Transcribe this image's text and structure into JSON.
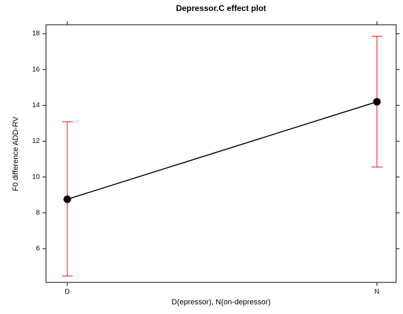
{
  "chart_data": {
    "type": "effect",
    "title": "Depressor.C effect plot",
    "x_label": "D(epressor), N(on-depressor)",
    "y_label": "F0 difference ADD-RV",
    "categories": [
      "D",
      "N"
    ],
    "series": [
      {
        "values": [
          8.76,
          14.2
        ],
        "lower": [
          4.47,
          10.56
        ],
        "upper": [
          13.09,
          17.85
        ],
        "color": "#000000",
        "error_color": "#ff0000"
      }
    ],
    "ylim": [
      4.12,
      18.5
    ],
    "yticks": [
      6,
      8,
      10,
      12,
      14,
      16,
      18
    ]
  }
}
